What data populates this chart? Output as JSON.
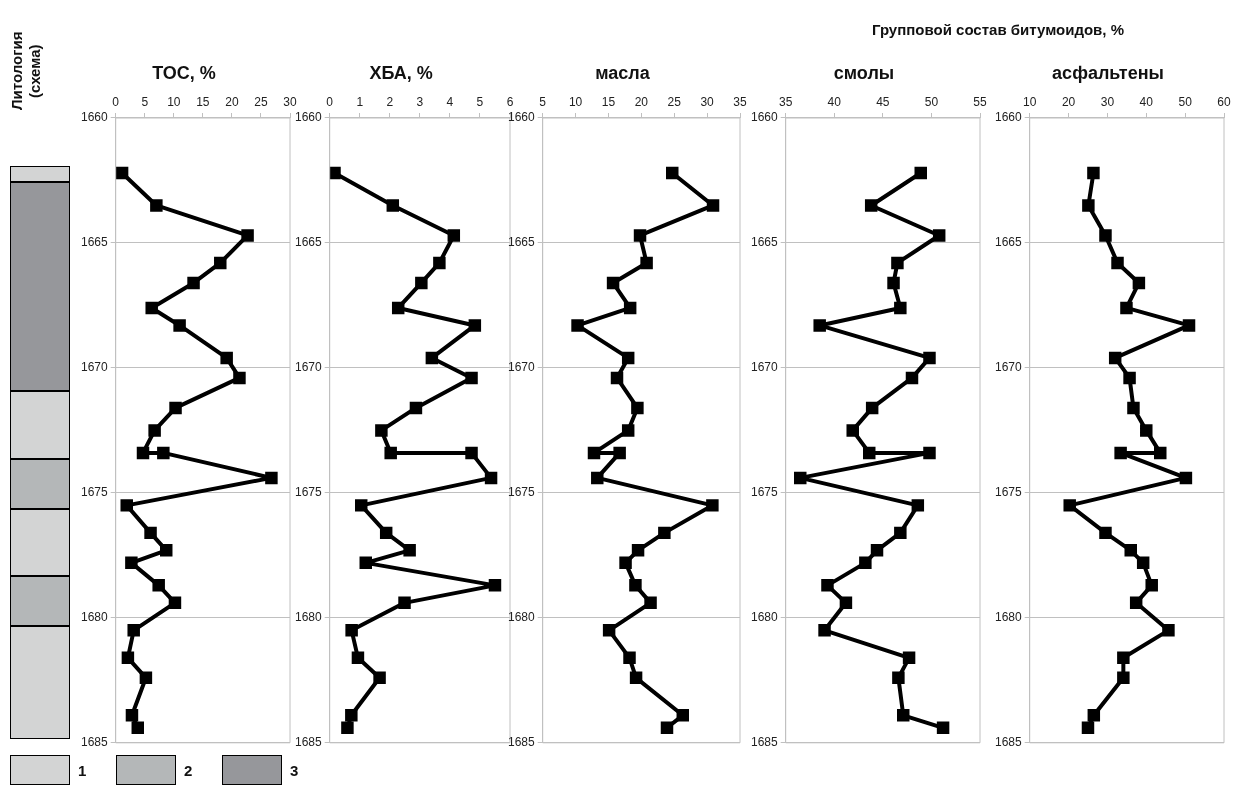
{
  "chart_data": [
    {
      "type": "other",
      "title": "Литология (схема)",
      "annotations": [
        "1",
        "2",
        "3"
      ]
    },
    {
      "type": "line",
      "title": "TOC, %",
      "orientation": "horizontal",
      "marker": "square",
      "grid": "y",
      "color": "#000000",
      "x": [
        1662.2,
        1663.5,
        1664.7,
        1665.8,
        1666.6,
        1667.6,
        1668.3,
        1669.6,
        1670.4,
        1671.6,
        1672.5,
        1673.4,
        1673.4,
        1674.4,
        1675.5,
        1676.6,
        1677.3,
        1677.8,
        1678.7,
        1679.4,
        1680.5,
        1681.6,
        1682.4,
        1683.9,
        1684.4
      ],
      "values": [
        1.1,
        7.0,
        22.7,
        18.0,
        13.4,
        6.2,
        11.0,
        19.1,
        21.3,
        10.3,
        6.7,
        4.7,
        8.2,
        26.8,
        1.9,
        6.0,
        8.7,
        2.7,
        7.4,
        10.2,
        3.1,
        2.1,
        5.2,
        2.8,
        3.8
      ],
      "xlim": [
        0,
        30
      ],
      "xticks": [
        0,
        5,
        10,
        15,
        20,
        25,
        30
      ],
      "ylim": [
        1685,
        1660
      ],
      "yticks": [
        1660,
        1665,
        1670,
        1675,
        1680,
        1685
      ]
    },
    {
      "type": "line",
      "title": "ХБА, %",
      "orientation": "horizontal",
      "marker": "square",
      "grid": "y",
      "color": "#000000",
      "x": [
        1662.2,
        1663.5,
        1664.7,
        1665.8,
        1666.6,
        1667.6,
        1668.3,
        1669.6,
        1670.4,
        1671.6,
        1672.5,
        1673.4,
        1673.4,
        1674.4,
        1675.5,
        1676.6,
        1677.3,
        1677.8,
        1678.7,
        1679.4,
        1680.5,
        1681.6,
        1682.4,
        1683.9,
        1684.4
      ],
      "values": [
        0.16,
        2.1,
        4.13,
        3.65,
        3.05,
        2.28,
        4.83,
        3.4,
        4.72,
        2.87,
        1.72,
        2.03,
        4.72,
        5.37,
        1.05,
        1.88,
        2.66,
        1.2,
        5.5,
        2.49,
        0.73,
        0.94,
        1.66,
        0.72,
        0.59
      ],
      "xlim": [
        0,
        6
      ],
      "xticks": [
        0,
        1,
        2,
        3,
        4,
        5,
        6
      ],
      "ylim": [
        1685,
        1660
      ],
      "yticks": [
        1660,
        1665,
        1670,
        1675,
        1680,
        1685
      ]
    },
    {
      "type": "line",
      "title": "масла",
      "orientation": "horizontal",
      "marker": "square",
      "grid": "y",
      "color": "#000000",
      "x": [
        1662.2,
        1663.5,
        1664.7,
        1665.8,
        1666.6,
        1667.6,
        1668.3,
        1669.6,
        1670.4,
        1671.6,
        1672.5,
        1673.4,
        1673.4,
        1674.4,
        1675.5,
        1676.6,
        1677.3,
        1677.8,
        1678.7,
        1679.4,
        1680.5,
        1681.6,
        1682.4,
        1683.9,
        1684.4
      ],
      "values": [
        24.7,
        30.9,
        19.8,
        20.8,
        15.7,
        18.3,
        10.3,
        18.0,
        16.3,
        19.4,
        18.0,
        12.8,
        16.7,
        13.3,
        30.8,
        23.5,
        19.5,
        17.6,
        19.1,
        21.4,
        15.1,
        18.2,
        19.2,
        26.3,
        23.9
      ],
      "xlim": [
        5,
        35
      ],
      "xticks": [
        5,
        10,
        15,
        20,
        25,
        30,
        35
      ],
      "ylim": [
        1685,
        1660
      ],
      "yticks": [
        1660,
        1665,
        1670,
        1675,
        1680,
        1685
      ]
    },
    {
      "type": "line",
      "title": "смолы",
      "annotations": [
        "Групповой состав битумоидов, %"
      ],
      "orientation": "horizontal",
      "marker": "square",
      "grid": "y",
      "color": "#000000",
      "x": [
        1662.2,
        1663.5,
        1664.7,
        1665.8,
        1666.6,
        1667.6,
        1668.3,
        1669.6,
        1670.4,
        1671.6,
        1672.5,
        1673.4,
        1673.4,
        1674.4,
        1675.5,
        1676.6,
        1677.3,
        1677.8,
        1678.7,
        1679.4,
        1680.5,
        1681.6,
        1682.4,
        1683.9,
        1684.4
      ],
      "values": [
        48.9,
        43.8,
        50.8,
        46.5,
        46.1,
        46.8,
        38.5,
        49.8,
        48.0,
        43.9,
        41.9,
        43.6,
        49.8,
        36.5,
        48.6,
        46.8,
        44.4,
        43.2,
        39.3,
        41.2,
        39.0,
        47.7,
        46.6,
        47.1,
        51.2
      ],
      "xlim": [
        35,
        55
      ],
      "xticks": [
        35,
        40,
        45,
        50,
        55
      ],
      "ylim": [
        1685,
        1660
      ],
      "yticks": [
        1660,
        1665,
        1670,
        1675,
        1680,
        1685
      ]
    },
    {
      "type": "line",
      "title": "асфальтены",
      "orientation": "horizontal",
      "marker": "square",
      "grid": "y",
      "color": "#000000",
      "x": [
        1662.2,
        1663.5,
        1664.7,
        1665.8,
        1666.6,
        1667.6,
        1668.3,
        1669.6,
        1670.4,
        1671.6,
        1672.5,
        1673.4,
        1673.4,
        1674.4,
        1675.5,
        1676.6,
        1677.3,
        1677.8,
        1678.7,
        1679.4,
        1680.5,
        1681.6,
        1682.4,
        1683.9,
        1684.4
      ],
      "values": [
        26.4,
        25.1,
        29.5,
        32.6,
        38.1,
        34.9,
        51.0,
        32.0,
        35.7,
        36.7,
        40.0,
        43.6,
        33.4,
        50.2,
        20.3,
        29.5,
        36.0,
        39.2,
        41.4,
        37.4,
        45.7,
        34.1,
        34.1,
        26.5,
        25.0
      ],
      "xlim": [
        10,
        60
      ],
      "xticks": [
        10,
        20,
        30,
        40,
        50,
        60
      ],
      "ylim": [
        1685,
        1660
      ],
      "yticks": [
        1660,
        1665,
        1670,
        1675,
        1680,
        1685
      ]
    }
  ]
}
